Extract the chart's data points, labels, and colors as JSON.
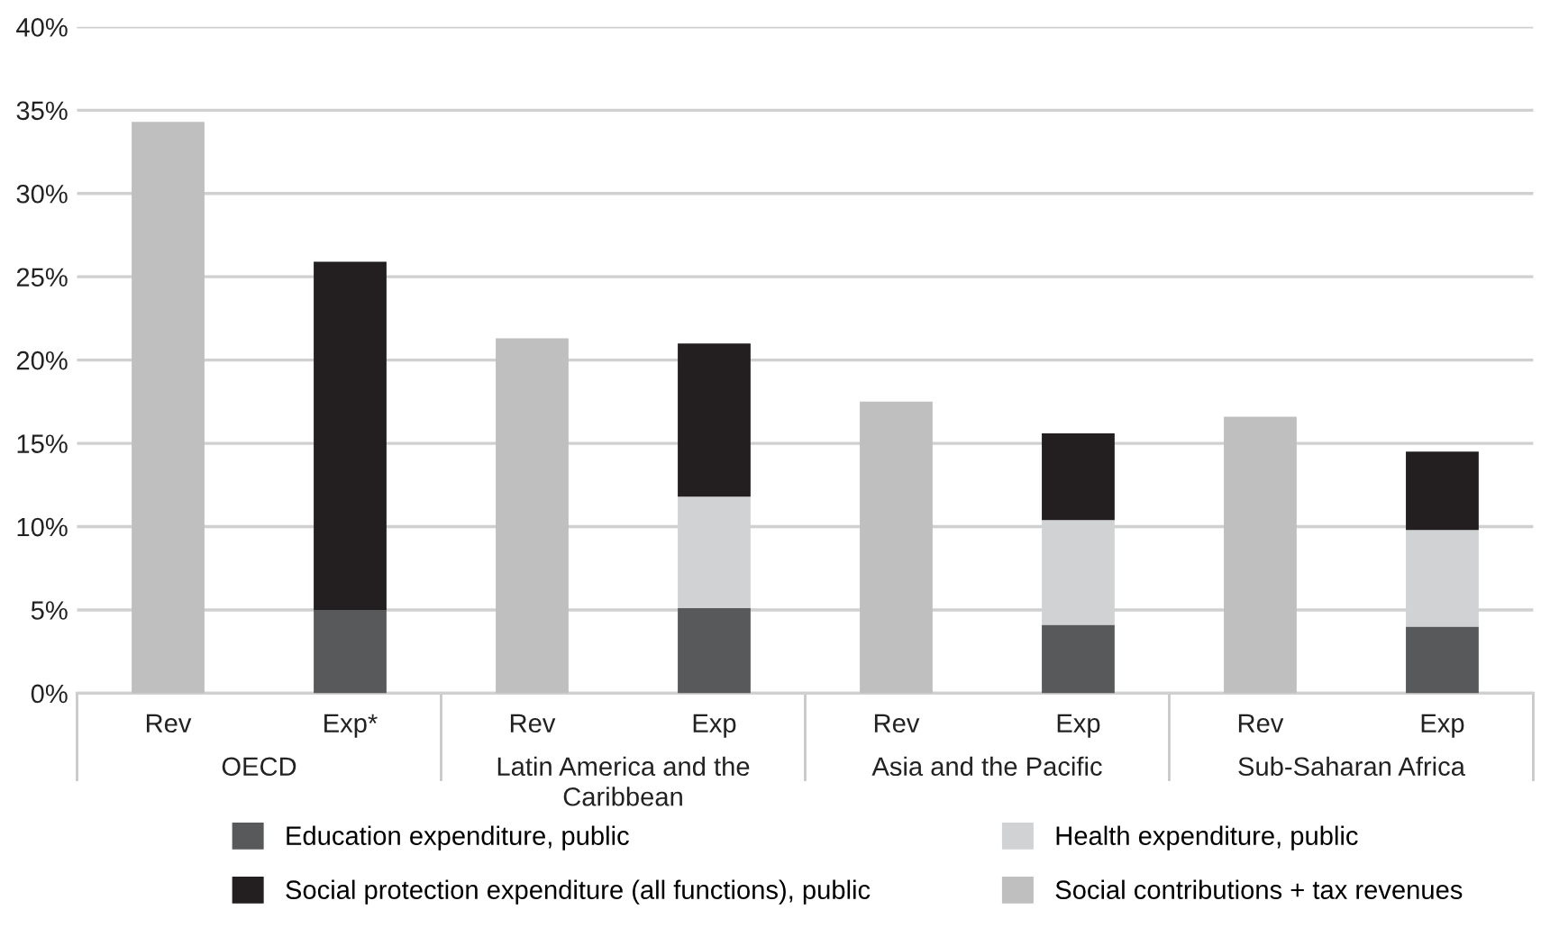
{
  "chart_data": {
    "type": "bar",
    "stacked": true,
    "categories": [
      "Rev",
      "Exp*",
      "Rev",
      "Exp",
      "Rev",
      "Exp",
      "Rev",
      "Exp"
    ],
    "series": [
      {
        "name": "Education expenditure, public",
        "color": "#58595b",
        "values": [
          null,
          5.0,
          null,
          5.1,
          null,
          4.1,
          null,
          4.0
        ]
      },
      {
        "name": "Health expenditure, public",
        "color": "#d1d2d4",
        "values": [
          null,
          null,
          null,
          6.7,
          null,
          6.3,
          null,
          5.8
        ]
      },
      {
        "name": "Social protection expenditure (all functions), public",
        "color": "#231f20",
        "values": [
          null,
          20.9,
          null,
          9.2,
          null,
          5.2,
          null,
          4.7
        ]
      },
      {
        "name": "Social contributions + tax revenues",
        "color": "#bfbfbf",
        "values": [
          34.3,
          null,
          21.3,
          null,
          17.5,
          null,
          16.6,
          null
        ]
      }
    ],
    "ylim": [
      0,
      40
    ],
    "yticks": [
      {
        "value": 0,
        "label": "0%"
      },
      {
        "value": 5,
        "label": "5%"
      },
      {
        "value": 10,
        "label": "10%"
      },
      {
        "value": 15,
        "label": "15%"
      },
      {
        "value": 20,
        "label": "20%"
      },
      {
        "value": 25,
        "label": "25%"
      },
      {
        "value": 30,
        "label": "30%"
      },
      {
        "value": 35,
        "label": "35%"
      },
      {
        "value": 40,
        "label": "40%"
      }
    ],
    "grid": "y",
    "legend": "bottom",
    "annotations": [
      "OECD",
      "Latin America and the\nCaribbean",
      "Asia and the Pacific",
      "Sub-Saharan Africa"
    ]
  }
}
